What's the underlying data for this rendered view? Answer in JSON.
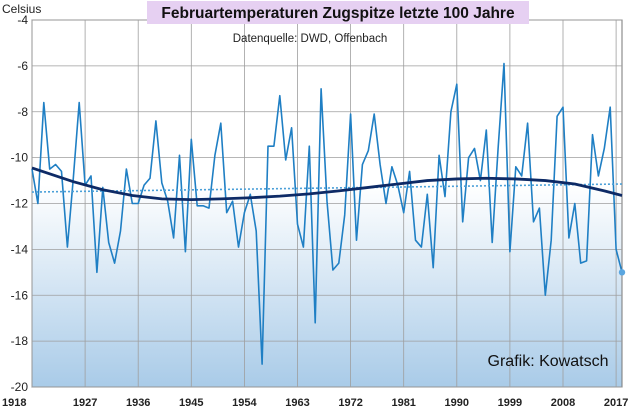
{
  "chart_data": {
    "type": "line",
    "title": "Februartemperaturen Zugspitze letzte 100 Jahre",
    "subtitle": "Datenquelle: DWD, Offenbach",
    "credit": "Grafik: Kowatsch",
    "ylabel": "Celsius",
    "xlabel": "",
    "xlim": [
      1918,
      2018
    ],
    "ylim": [
      -20,
      -4
    ],
    "x_ticks": [
      "1918",
      "1927",
      "1936",
      "1945",
      "1954",
      "1963",
      "1972",
      "1981",
      "1990",
      "1999",
      "2008",
      "2017"
    ],
    "y_ticks": [
      "-4",
      "-6",
      "-8",
      "-10",
      "-12",
      "-14",
      "-16",
      "-18",
      "-20"
    ],
    "grid": true,
    "colors": {
      "series": "#1f7fc4",
      "trend_linear": "#4a9fd8",
      "trend_poly": "#0d2a66",
      "title_bg": "#e6d0f2"
    },
    "series": [
      {
        "x": [
          1918,
          1919,
          1920,
          1921,
          1922,
          1923,
          1924,
          1925,
          1926,
          1927,
          1928,
          1929,
          1930,
          1931,
          1932,
          1933,
          1934,
          1935,
          1936,
          1937,
          1938,
          1939,
          1940,
          1941,
          1942,
          1943,
          1944,
          1945,
          1946,
          1947,
          1948,
          1949,
          1950,
          1951,
          1952,
          1953,
          1954,
          1955,
          1956,
          1957,
          1958,
          1959,
          1960,
          1961,
          1962,
          1963,
          1964,
          1965,
          1966,
          1967,
          1968,
          1969,
          1970,
          1971,
          1972,
          1973,
          1974,
          1975,
          1976,
          1977,
          1978,
          1979,
          1980,
          1981,
          1982,
          1983,
          1984,
          1985,
          1986,
          1987,
          1988,
          1989,
          1990,
          1991,
          1992,
          1993,
          1994,
          1995,
          1996,
          1997,
          1998,
          1999,
          2000,
          2001,
          2002,
          2003,
          2004,
          2005,
          2006,
          2007,
          2008,
          2009,
          2010,
          2011,
          2012,
          2013,
          2014,
          2015,
          2016,
          2017,
          2018
        ],
        "values": [
          -10.5,
          -12.0,
          -7.6,
          -10.5,
          -10.3,
          -10.6,
          -13.9,
          -10.9,
          -7.6,
          -11.2,
          -10.8,
          -15.0,
          -11.3,
          -13.7,
          -14.6,
          -13.2,
          -10.5,
          -12.0,
          -12.0,
          -11.2,
          -10.9,
          -8.4,
          -11.1,
          -11.9,
          -13.5,
          -9.9,
          -14.1,
          -9.2,
          -12.1,
          -12.1,
          -12.2,
          -9.9,
          -8.5,
          -12.4,
          -11.9,
          -13.9,
          -12.4,
          -11.6,
          -13.2,
          -19.0,
          -9.5,
          -9.5,
          -7.3,
          -10.1,
          -8.7,
          -12.9,
          -13.9,
          -9.5,
          -17.2,
          -7.0,
          -11.9,
          -14.9,
          -14.6,
          -12.5,
          -8.1,
          -13.6,
          -10.3,
          -9.7,
          -8.1,
          -10.3,
          -12.0,
          -10.4,
          -11.2,
          -12.4,
          -10.6,
          -13.6,
          -13.9,
          -11.6,
          -14.8,
          -9.9,
          -11.7,
          -8.0,
          -6.8,
          -12.8,
          -10.0,
          -9.6,
          -11.0,
          -8.8,
          -13.7,
          -9.6,
          -5.9,
          -14.1,
          -10.4,
          -10.8,
          -8.5,
          -12.8,
          -12.2,
          -16.0,
          -13.6,
          -8.2,
          -7.8,
          -13.5,
          -12.0,
          -14.6,
          -14.5,
          -9.0,
          -10.8,
          -9.6,
          -7.8,
          -14.0,
          -15.0
        ]
      }
    ],
    "trend_lines": [
      {
        "kind": "linear",
        "x": [
          1918,
          2018
        ],
        "values": [
          -11.5,
          -11.15
        ]
      },
      {
        "kind": "polynomial",
        "x": [
          1918,
          1925,
          1930,
          1935,
          1940,
          1945,
          1950,
          1955,
          1960,
          1965,
          1970,
          1975,
          1980,
          1985,
          1990,
          1995,
          2000,
          2005,
          2010,
          2015,
          2018
        ],
        "values": [
          -10.45,
          -11.05,
          -11.4,
          -11.65,
          -11.8,
          -11.83,
          -11.8,
          -11.75,
          -11.68,
          -11.58,
          -11.45,
          -11.3,
          -11.15,
          -11.0,
          -10.93,
          -10.9,
          -10.93,
          -11.0,
          -11.15,
          -11.45,
          -11.65
        ]
      }
    ]
  }
}
